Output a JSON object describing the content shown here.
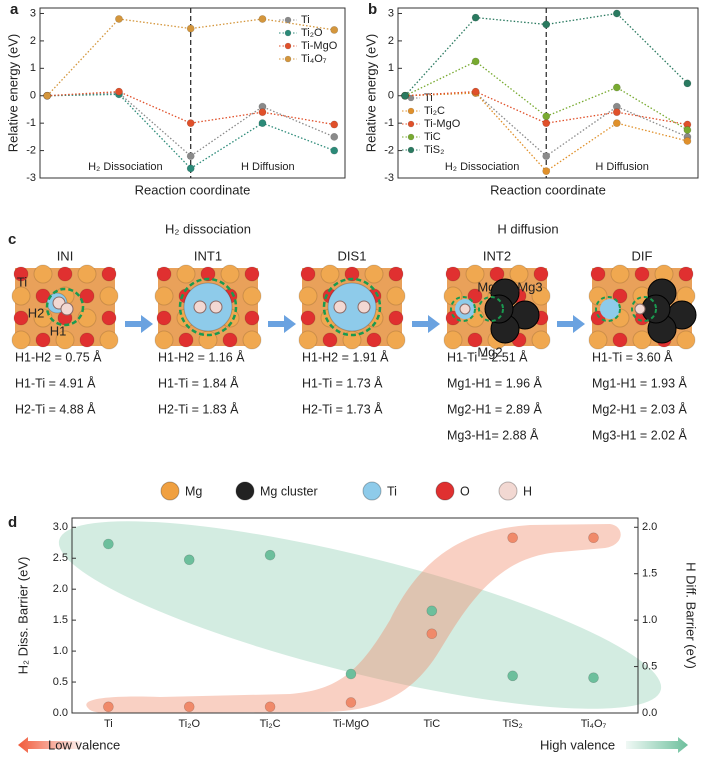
{
  "chart_data": [
    {
      "type": "line",
      "label": "a",
      "ylabel": "Relative energy (eV)",
      "xlabel": "Reaction coordinate",
      "annotations": [
        "H₂ Dissociation",
        "H Diffusion"
      ],
      "divider": 2,
      "x": [
        0,
        1,
        2,
        3,
        4
      ],
      "xlim": [
        -0.1,
        4.15
      ],
      "ylim": [
        -3,
        3.2
      ],
      "yticks": [
        -3,
        -2,
        -1,
        0,
        1,
        2,
        3
      ],
      "legend": "upper right",
      "series": [
        {
          "name": "Ti",
          "color": "#8a8a8a",
          "values": [
            0,
            0.1,
            -2.2,
            -0.4,
            -1.5
          ]
        },
        {
          "name": "Ti₂O",
          "color": "#2b8a78",
          "values": [
            0,
            0.05,
            -2.65,
            -1.0,
            -2.0
          ]
        },
        {
          "name": "Ti-MgO",
          "color": "#e0502a",
          "values": [
            0,
            0.15,
            -1.0,
            -0.6,
            -1.05
          ]
        },
        {
          "name": "Ti₄O₇",
          "color": "#d4963c",
          "values": [
            0,
            2.8,
            2.45,
            2.8,
            2.4
          ]
        }
      ]
    },
    {
      "type": "line",
      "label": "b",
      "ylabel": "Relative energy (eV)",
      "xlabel": "Reaction coordinate",
      "annotations": [
        "H₂ Dissociation",
        "H Diffusion"
      ],
      "divider": 2,
      "x": [
        0,
        1,
        2,
        3,
        4
      ],
      "xlim": [
        -0.1,
        4.15
      ],
      "ylim": [
        -3,
        3.2
      ],
      "yticks": [
        -3,
        -2,
        -1,
        0,
        1,
        2,
        3
      ],
      "legend": "lower left",
      "series": [
        {
          "name": "Ti",
          "color": "#8a8a8a",
          "values": [
            0,
            0.1,
            -2.2,
            -0.4,
            -1.5
          ]
        },
        {
          "name": "Ti₂C",
          "color": "#e0902a",
          "values": [
            0,
            0.1,
            -2.75,
            -1.0,
            -1.65
          ]
        },
        {
          "name": "Ti-MgO",
          "color": "#e0502a",
          "values": [
            0,
            0.15,
            -1.0,
            -0.6,
            -1.05
          ]
        },
        {
          "name": "TiC",
          "color": "#78aa30",
          "values": [
            0,
            1.25,
            -0.75,
            0.3,
            -1.25
          ]
        },
        {
          "name": "TiS₂",
          "color": "#2a7a60",
          "values": [
            0,
            2.85,
            2.6,
            3.0,
            0.45
          ]
        }
      ]
    },
    {
      "type": "scatter",
      "label": "d",
      "ylabel": "H₂ Diss. Barrier (eV)",
      "y2label": "H Diff. Barrier (eV)",
      "categories": [
        "Ti",
        "Ti₂O",
        "Ti₂C",
        "Ti-MgO",
        "TiC",
        "TiS₂",
        "Ti₄O₇"
      ],
      "ylim": [
        0,
        3.15
      ],
      "yticks": [
        {
          "value": 0,
          "label": "0.0"
        },
        0.5,
        {
          "value": 1,
          "label": "1.0"
        },
        1.5,
        {
          "value": 2,
          "label": "2.0"
        },
        2.5,
        {
          "value": 3,
          "label": "3.0"
        }
      ],
      "y2lim": [
        0,
        2.1
      ],
      "y2ticks": [
        {
          "value": 0,
          "label": "0.0"
        },
        0.5,
        {
          "value": 1,
          "label": "1.0"
        },
        1.5,
        {
          "value": 2,
          "label": "2.0"
        }
      ],
      "annotations": [
        "Low valence",
        "High valence"
      ],
      "series": [
        {
          "color": "#f08a6a",
          "values": [
            0.1,
            0.1,
            0.1,
            0.17,
            1.28,
            2.83,
            2.83
          ]
        },
        {
          "color": "#6cbf9c",
          "axis": "y2",
          "values": [
            1.82,
            1.65,
            1.7,
            0.42,
            1.1,
            0.4,
            0.38
          ]
        }
      ]
    }
  ],
  "panel_c": {
    "label": "c",
    "groups": [
      "H₂ dissociation",
      "H diffusion"
    ],
    "states": [
      {
        "name": "INI",
        "atoms": [
          "Ti",
          "H2",
          "H1"
        ],
        "lines": [
          "H1-H2 = 0.75 Å",
          "H1-Ti = 4.91 Å",
          "H2-Ti = 4.88 Å"
        ]
      },
      {
        "name": "INT1",
        "lines": [
          "H1-H2 = 1.16 Å",
          "H1-Ti = 1.84 Å",
          "H2-Ti = 1.83 Å"
        ]
      },
      {
        "name": "DIS1",
        "lines": [
          "H1-H2 = 1.91 Å",
          "H1-Ti = 1.73 Å",
          "H2-Ti = 1.73 Å"
        ]
      },
      {
        "name": "INT2",
        "atoms": [
          "Mg1",
          "Mg3",
          "Mg2"
        ],
        "lines": [
          "H1-Ti = 2.51 Å",
          "Mg1-H1 = 1.96 Å",
          "Mg2-H1 = 2.89 Å",
          "Mg3-H1= 2.88 Å"
        ]
      },
      {
        "name": "DIF",
        "lines": [
          "H1-Ti = 3.60 Å",
          "Mg1-H1 = 1.93 Å",
          "Mg2-H1 =  2.03 Å",
          "Mg3-H1 = 2.02 Å"
        ]
      }
    ],
    "legend": [
      "Mg",
      "Mg cluster",
      "Ti",
      "O",
      "H"
    ]
  }
}
